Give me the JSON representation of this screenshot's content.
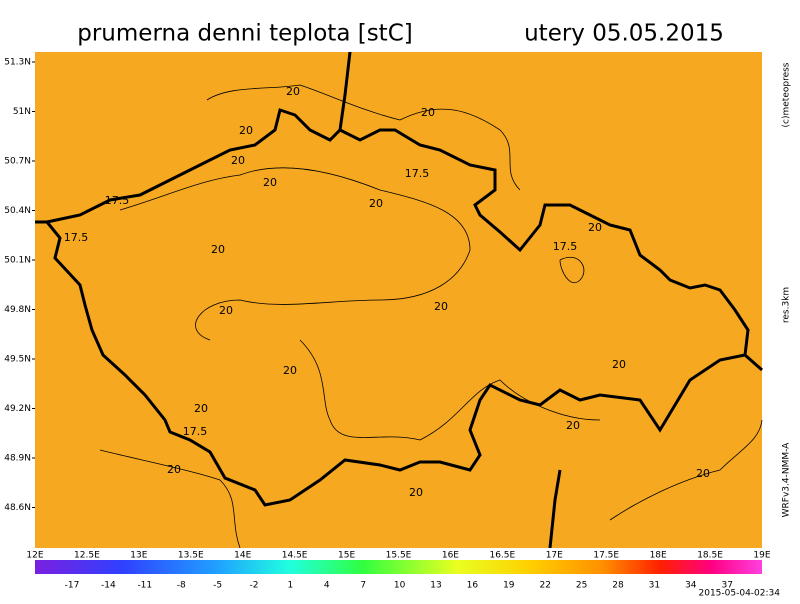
{
  "header": {
    "title": "prumerna denni teplota [stC]",
    "date": "utery 05.05.2015"
  },
  "lat_labels": [
    "51.3N",
    "51N",
    "50.7N",
    "50.4N",
    "50.1N",
    "49.8N",
    "49.5N",
    "49.2N",
    "48.9N",
    "48.6N"
  ],
  "lon_labels": [
    "12E",
    "12.5E",
    "13E",
    "13.5E",
    "14E",
    "14.5E",
    "15E",
    "15.5E",
    "16E",
    "16.5E",
    "17E",
    "17.5E",
    "18E",
    "18.5E",
    "19E"
  ],
  "colorbar_labels": [
    -17,
    -14,
    -11,
    -8,
    -5,
    -2,
    1,
    4,
    7,
    10,
    13,
    16,
    19,
    22,
    25,
    28,
    31,
    34,
    37
  ],
  "contour_labels": [
    "20",
    "20",
    "20",
    "20",
    "20",
    "20",
    "20",
    "20",
    "20",
    "20",
    "20",
    "20",
    "20",
    "20",
    "20",
    "20",
    "20",
    "17.5",
    "17.5",
    "17.5",
    "17.5",
    "17.5"
  ],
  "side_texts": {
    "copyright": "(c)meteopress",
    "resolution": "res.3km",
    "model": "WRFv3.4-NMM-A"
  },
  "timestamp": "2015-05-04-02:34"
}
